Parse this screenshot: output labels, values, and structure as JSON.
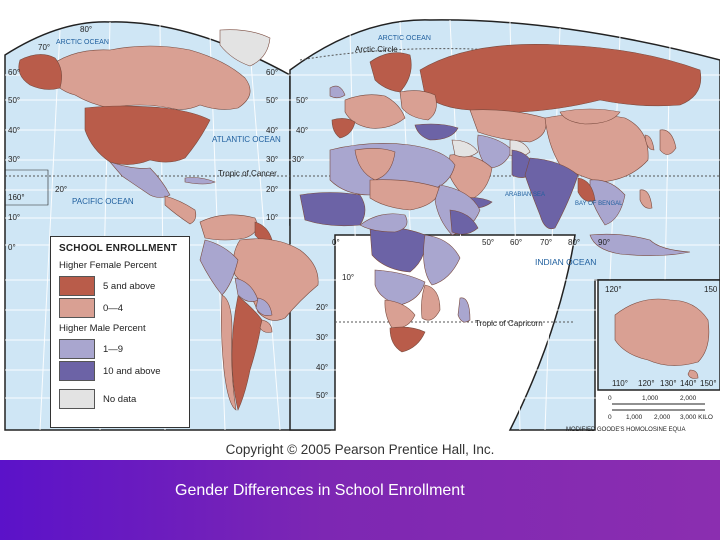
{
  "map": {
    "legend": {
      "title": "SCHOOL ENROLLMENT",
      "female_header": "Higher Female Percent",
      "male_header": "Higher Male Percent",
      "items": [
        {
          "label": "5 and above",
          "color": "#b95c4a"
        },
        {
          "label": "0—4",
          "color": "#d9a093"
        },
        {
          "label": "1—9",
          "color": "#a9a6cf"
        },
        {
          "label": "10 and above",
          "color": "#6c63a6"
        },
        {
          "label": "No data",
          "color": "#e3e3e3"
        }
      ]
    },
    "ocean_labels": {
      "arctic_left": "ARCTIC OCEAN",
      "arctic_right": "ARCTIC OCEAN",
      "atlantic": "ATLANTIC OCEAN",
      "pacific": "PACIFIC OCEAN",
      "arabian_sea": "ARABIAN SEA",
      "bay_of_bengal": "BAY OF BENGAL",
      "indian_ocean": "INDIAN OCEAN"
    },
    "lines": {
      "arctic_circle": "Arctic Circle",
      "tropic_cancer": "Tropic of Cancer",
      "tropic_capricorn": "Tropic of Capricorn"
    },
    "scale": {
      "miles_ticks": [
        "0",
        "1,000",
        "2,000"
      ],
      "km_ticks": [
        "0",
        "1,000",
        "2,000",
        "3,000 KILO"
      ],
      "projection": "MODIFIED GOODE'S HOMOLOSINE EQUA"
    },
    "lat_labels": [
      "80°",
      "70°",
      "60°",
      "50°",
      "40°",
      "30°",
      "20°",
      "10°",
      "0°",
      "160°",
      "120°",
      "150",
      "110°",
      "120°",
      "130°",
      "140°",
      "150°",
      "50°",
      "60°",
      "70°",
      "80°",
      "90°"
    ],
    "colors": {
      "ocean": "#cfe6f5",
      "grid": "#ffffff",
      "border_dark": "#222222"
    }
  },
  "footer": {
    "copyright": "Copyright © 2005 Pearson Prentice Hall, Inc.",
    "caption": "Gender Differences in School Enrollment"
  }
}
